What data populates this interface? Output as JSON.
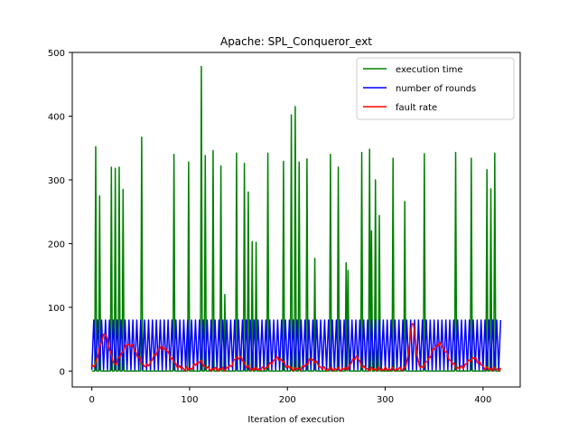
{
  "chart_data": {
    "type": "line",
    "title": "Apache: SPL_Conqueror_ext",
    "xlabel": "Iteration of execution",
    "ylabel": "",
    "xlim": [
      -20,
      438
    ],
    "ylim": [
      -25,
      500
    ],
    "xticks": [
      0,
      100,
      200,
      300,
      400
    ],
    "yticks": [
      0,
      100,
      200,
      300,
      400,
      500
    ],
    "legend_position": "upper right",
    "series": [
      {
        "name": "execution time",
        "color": "#008000",
        "spikes": [
          [
            4,
            352
          ],
          [
            8,
            275
          ],
          [
            20,
            320
          ],
          [
            24,
            318
          ],
          [
            28,
            320
          ],
          [
            32,
            285
          ],
          [
            51,
            367
          ],
          [
            84,
            340
          ],
          [
            99,
            328
          ],
          [
            112,
            478
          ],
          [
            116,
            338
          ],
          [
            124,
            346
          ],
          [
            132,
            322
          ],
          [
            136,
            120
          ],
          [
            148,
            342
          ],
          [
            156,
            326
          ],
          [
            160,
            281
          ],
          [
            164,
            203
          ],
          [
            168,
            202
          ],
          [
            180,
            342
          ],
          [
            196,
            329
          ],
          [
            204,
            402
          ],
          [
            208,
            415
          ],
          [
            212,
            328
          ],
          [
            220,
            333
          ],
          [
            228,
            177
          ],
          [
            244,
            340
          ],
          [
            252,
            320
          ],
          [
            260,
            170
          ],
          [
            262,
            158
          ],
          [
            276,
            343
          ],
          [
            284,
            348
          ],
          [
            286,
            220
          ],
          [
            290,
            300
          ],
          [
            294,
            244
          ],
          [
            308,
            334
          ],
          [
            320,
            266
          ],
          [
            340,
            341
          ],
          [
            372,
            343
          ],
          [
            388,
            334
          ],
          [
            404,
            316
          ],
          [
            408,
            286
          ],
          [
            412,
            342
          ]
        ]
      },
      {
        "name": "number of rounds",
        "color": "#0000ff",
        "high": 80,
        "low": 2,
        "period": 4,
        "x_start": 0,
        "x_end": 418
      },
      {
        "name": "fault rate",
        "color": "#ff0000",
        "bumps": [
          [
            13,
            57,
            5
          ],
          [
            38,
            42,
            8
          ],
          [
            72,
            37,
            8
          ],
          [
            110,
            15,
            4
          ],
          [
            150,
            22,
            5
          ],
          [
            190,
            20,
            6
          ],
          [
            225,
            18,
            5
          ],
          [
            270,
            22,
            4
          ],
          [
            328,
            75,
            3
          ],
          [
            355,
            42,
            8
          ],
          [
            390,
            20,
            6
          ]
        ],
        "baseline": 3
      }
    ]
  }
}
